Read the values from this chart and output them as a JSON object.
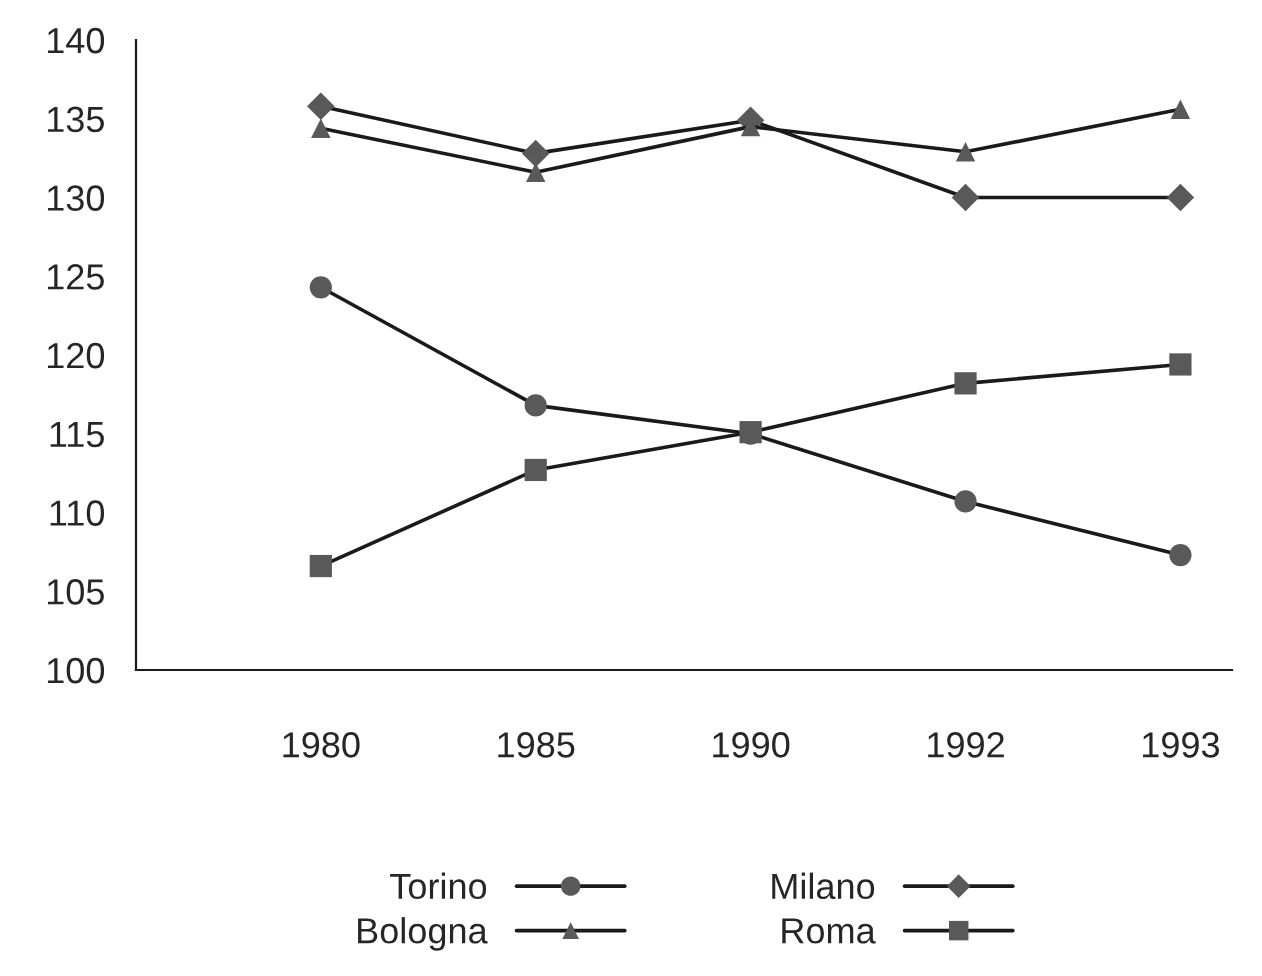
{
  "chart_data": {
    "type": "line",
    "categories": [
      "1980",
      "1985",
      "1990",
      "1992",
      "1993"
    ],
    "series": [
      {
        "name": "Torino",
        "color": "#595959",
        "marker": "circle",
        "values": [
          124.3,
          116.8,
          115.0,
          110.7,
          107.3
        ]
      },
      {
        "name": "Milano",
        "color": "#595959",
        "marker": "diamond",
        "values": [
          135.8,
          132.8,
          134.9,
          130.0,
          130.0
        ]
      },
      {
        "name": "Bologna",
        "color": "#595959",
        "marker": "triangle",
        "values": [
          134.4,
          131.6,
          134.5,
          132.9,
          135.6
        ]
      },
      {
        "name": "Roma",
        "color": "#595959",
        "marker": "square",
        "values": [
          106.6,
          112.7,
          115.1,
          118.2,
          119.4
        ]
      }
    ],
    "ylim": [
      100,
      140
    ],
    "yticks": [
      100,
      105,
      110,
      115,
      120,
      125,
      130,
      135,
      140
    ],
    "grid": false,
    "legend": "bottom",
    "line_style": "solid"
  }
}
